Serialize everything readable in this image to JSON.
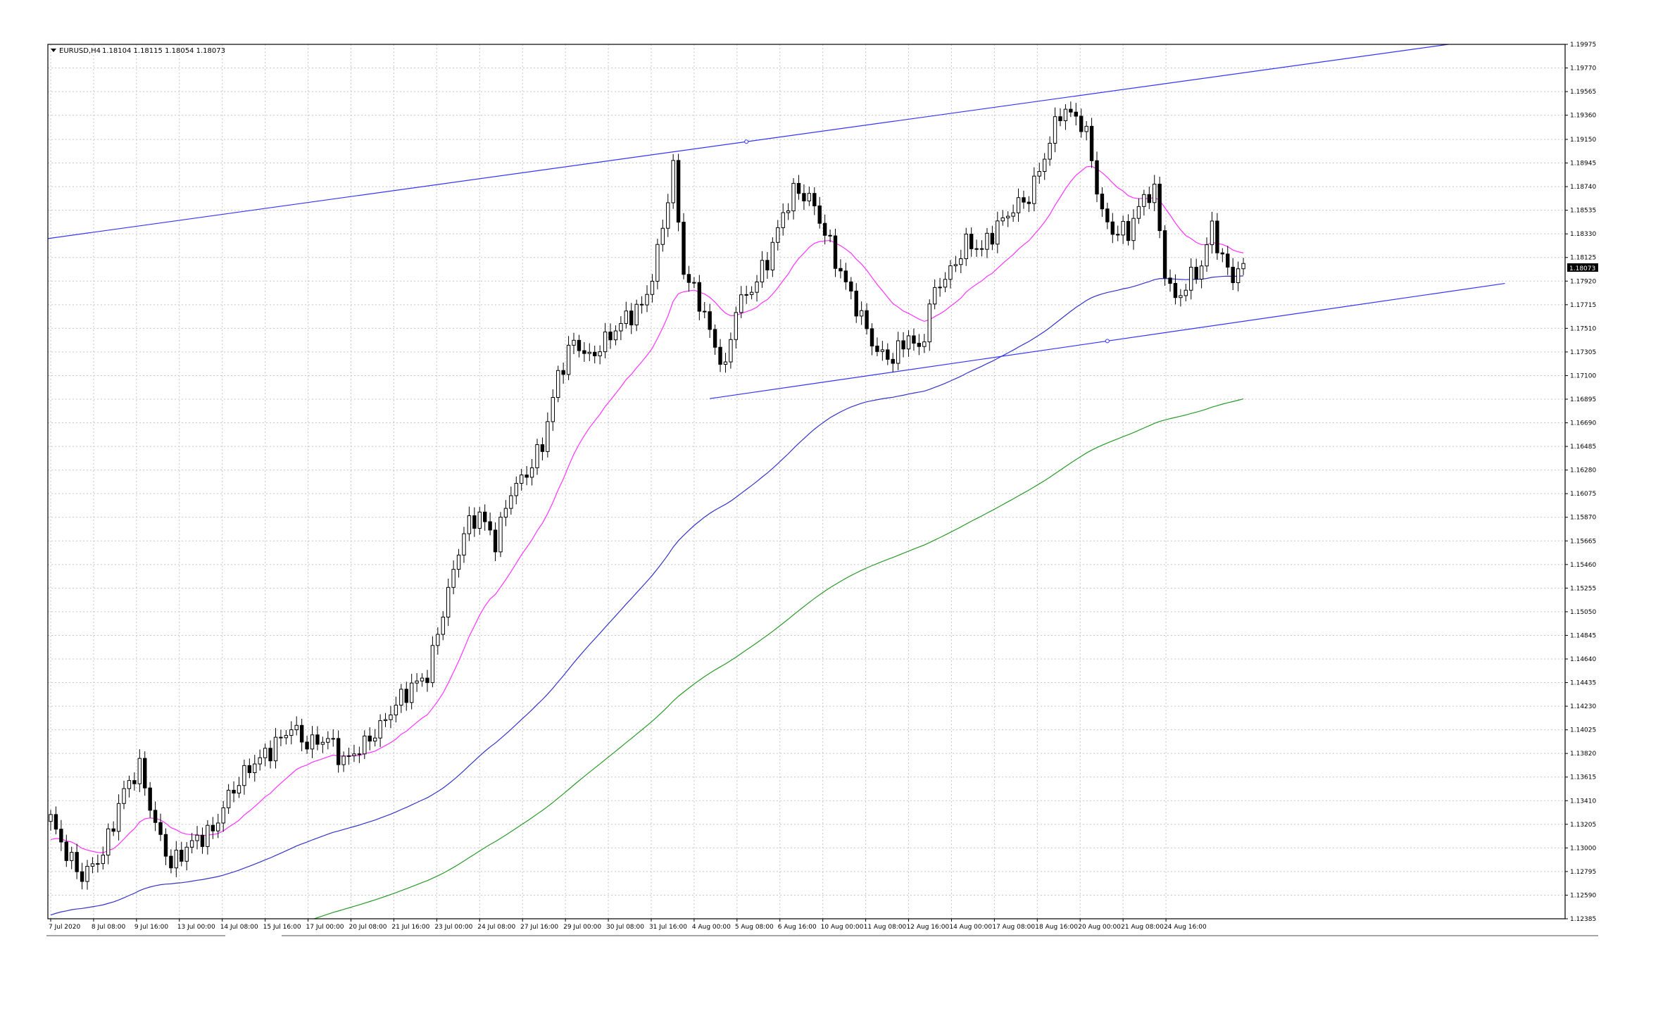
{
  "header": {
    "symbol": "EURUSD,H4",
    "quote": "1.18104 1.18115 1.18054 1.18073"
  },
  "colors": {
    "background": "#ffffff",
    "grid": "#c7c7c7",
    "candle": "#000000",
    "ma_fast": "#ff33ff",
    "ma_mid": "#3333cc",
    "ma_slow": "#2a9a2a",
    "trendline": "#3333ff",
    "price_tag": "#000000"
  },
  "chart_data": {
    "type": "line",
    "title": "EURUSD,H4",
    "ylim": [
      1.12385,
      1.19975
    ],
    "grid": true,
    "y_ticks": [
      "1.19975",
      "1.19770",
      "1.19565",
      "1.19360",
      "1.19150",
      "1.18945",
      "1.18740",
      "1.18535",
      "1.18330",
      "1.18125",
      "1.17920",
      "1.17715",
      "1.17510",
      "1.17305",
      "1.17100",
      "1.16895",
      "1.16690",
      "1.16485",
      "1.16280",
      "1.16075",
      "1.15870",
      "1.15665",
      "1.15460",
      "1.15255",
      "1.15050",
      "1.14845",
      "1.14640",
      "1.14435",
      "1.14230",
      "1.14025",
      "1.13820",
      "1.13615",
      "1.13410",
      "1.13205",
      "1.13000",
      "1.12795",
      "1.12590",
      "1.12385"
    ],
    "x_ticks": [
      "7 Jul 2020",
      "8 Jul 08:00",
      "9 Jul 16:00",
      "13 Jul 00:00",
      "14 Jul 08:00",
      "15 Jul 16:00",
      "17 Jul 00:00",
      "20 Jul 08:00",
      "21 Jul 16:00",
      "23 Jul 00:00",
      "24 Jul 08:00",
      "27 Jul 16:00",
      "29 Jul 00:00",
      "30 Jul 08:00",
      "31 Jul 16:00",
      "4 Aug 00:00",
      "5 Aug 08:00",
      "6 Aug 16:00",
      "10 Aug 00:00",
      "11 Aug 08:00",
      "12 Aug 16:00",
      "14 Aug 00:00",
      "17 Aug 08:00",
      "18 Aug 16:00",
      "20 Aug 00:00",
      "21 Aug 08:00",
      "24 Aug 16:00"
    ],
    "current_price": "1.18073",
    "close_anchors": [
      [
        0,
        1.1325
      ],
      [
        3,
        1.1295
      ],
      [
        6,
        1.1275
      ],
      [
        10,
        1.1295
      ],
      [
        14,
        1.135
      ],
      [
        17,
        1.137
      ],
      [
        20,
        1.132
      ],
      [
        23,
        1.1285
      ],
      [
        27,
        1.1305
      ],
      [
        31,
        1.1315
      ],
      [
        34,
        1.1345
      ],
      [
        38,
        1.137
      ],
      [
        42,
        1.1385
      ],
      [
        46,
        1.1405
      ],
      [
        49,
        1.139
      ],
      [
        53,
        1.1395
      ],
      [
        56,
        1.1375
      ],
      [
        60,
        1.139
      ],
      [
        63,
        1.1405
      ],
      [
        66,
        1.1425
      ],
      [
        69,
        1.144
      ],
      [
        72,
        1.145
      ],
      [
        75,
        1.1505
      ],
      [
        77,
        1.154
      ],
      [
        79,
        1.1575
      ],
      [
        82,
        1.159
      ],
      [
        85,
        1.1565
      ],
      [
        88,
        1.161
      ],
      [
        91,
        1.1625
      ],
      [
        94,
        1.165
      ],
      [
        97,
        1.171
      ],
      [
        100,
        1.174
      ],
      [
        103,
        1.1725
      ],
      [
        107,
        1.1745
      ],
      [
        110,
        1.176
      ],
      [
        113,
        1.177
      ],
      [
        115,
        1.1795
      ],
      [
        117,
        1.184
      ],
      [
        119,
        1.189
      ],
      [
        121,
        1.18
      ],
      [
        124,
        1.1775
      ],
      [
        127,
        1.1735
      ],
      [
        129,
        1.1715
      ],
      [
        131,
        1.177
      ],
      [
        134,
        1.1785
      ],
      [
        137,
        1.181
      ],
      [
        140,
        1.185
      ],
      [
        142,
        1.187
      ],
      [
        145,
        1.1865
      ],
      [
        148,
        1.1835
      ],
      [
        150,
        1.181
      ],
      [
        152,
        1.179
      ],
      [
        155,
        1.176
      ],
      [
        158,
        1.173
      ],
      [
        161,
        1.1725
      ],
      [
        164,
        1.1745
      ],
      [
        166,
        1.173
      ],
      [
        169,
        1.1785
      ],
      [
        172,
        1.18
      ],
      [
        175,
        1.1825
      ],
      [
        178,
        1.182
      ],
      [
        181,
        1.184
      ],
      [
        184,
        1.1855
      ],
      [
        187,
        1.1865
      ],
      [
        190,
        1.19
      ],
      [
        193,
        1.194
      ],
      [
        196,
        1.1935
      ],
      [
        198,
        1.192
      ],
      [
        201,
        1.185
      ],
      [
        203,
        1.1835
      ],
      [
        206,
        1.1835
      ],
      [
        209,
        1.1865
      ],
      [
        211,
        1.187
      ],
      [
        213,
        1.18
      ],
      [
        215,
        1.1775
      ],
      [
        218,
        1.1795
      ],
      [
        220,
        1.1805
      ],
      [
        222,
        1.184
      ],
      [
        224,
        1.181
      ],
      [
        226,
        1.1795
      ],
      [
        228,
        1.181
      ]
    ],
    "series": [
      {
        "name": "",
        "type": "candlestick",
        "count": 229,
        "first_close": 1.1325,
        "last_close": 1.18073
      },
      {
        "name": "",
        "type": "ma",
        "period": 20,
        "color": "#ff33ff"
      },
      {
        "name": "",
        "type": "ma",
        "period": 100,
        "color": "#3333cc"
      },
      {
        "name": "",
        "type": "ma",
        "period": 200,
        "color": "#2a9a2a"
      }
    ],
    "trendlines": [
      {
        "name": "",
        "from": {
          "bar": -2,
          "price": 1.1828
        },
        "to": {
          "bar": 268,
          "price": 1.1998
        }
      },
      {
        "name": "",
        "from": {
          "bar": 126,
          "price": 1.169
        },
        "to": {
          "bar": 278,
          "price": 1.179
        }
      }
    ]
  }
}
